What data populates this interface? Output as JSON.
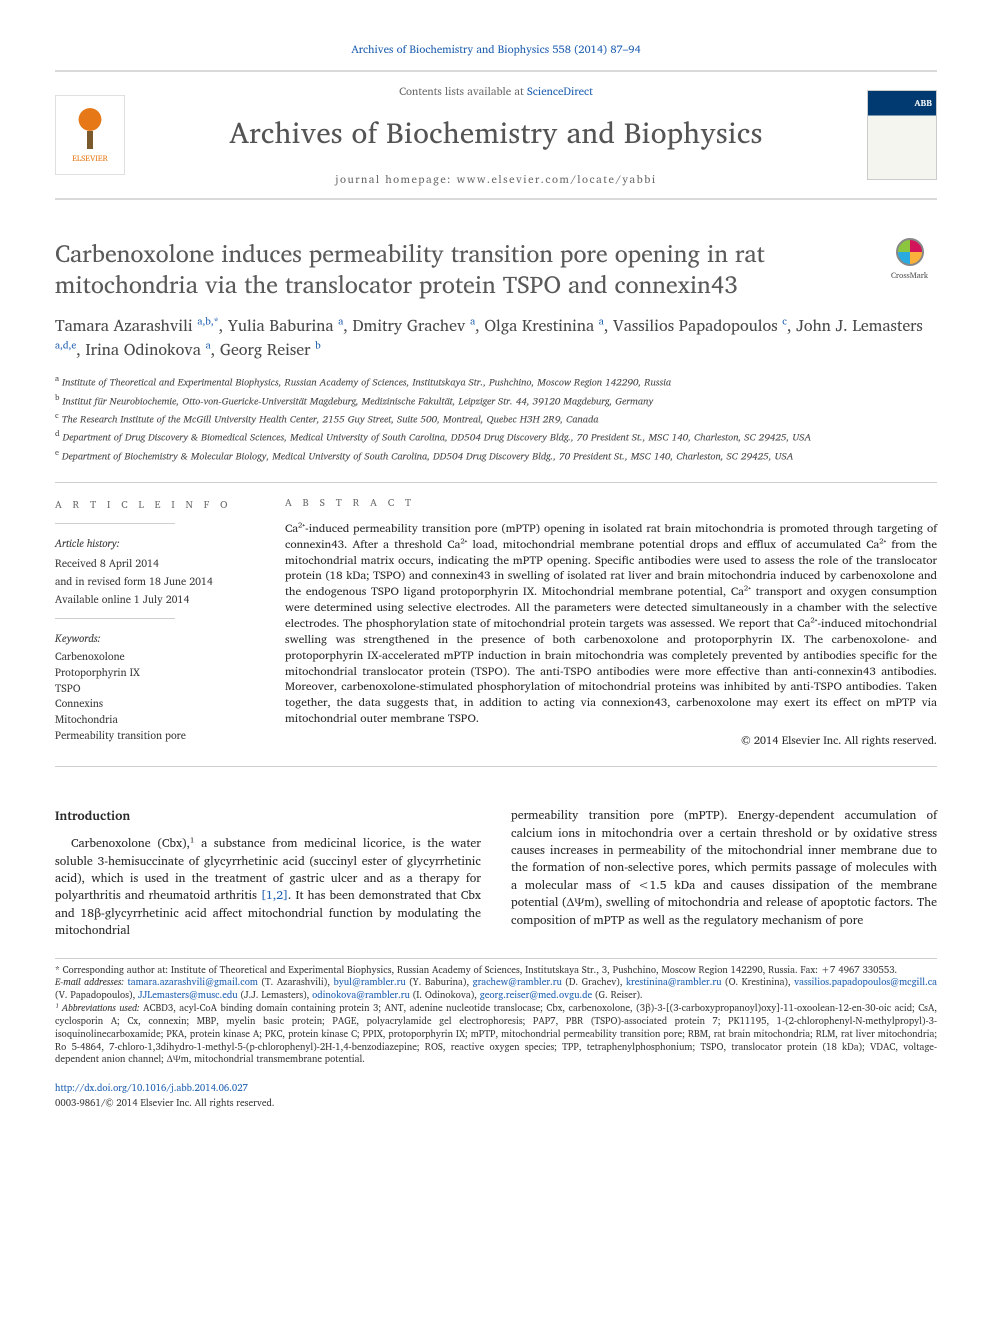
{
  "citation": "Archives of Biochemistry and Biophysics 558 (2014) 87–94",
  "header": {
    "contents_prefix": "Contents lists available at ",
    "contents_link": "ScienceDirect",
    "journal_name": "Archives of Biochemistry and Biophysics",
    "homepage_prefix": "journal homepage: ",
    "homepage_url": "www.elsevier.com/locate/yabbi",
    "publisher_label": "ELSEVIER"
  },
  "crossmark_label": "CrossMark",
  "title": "Carbenoxolone induces permeability transition pore opening in rat mitochondria via the translocator protein TSPO and connexin43",
  "authors_html": "Tamara Azarashvili <sup>a,b,*</sup>, Yulia Baburina <sup>a</sup>, Dmitry Grachev <sup>a</sup>, Olga Krestinina <sup>a</sup>, Vassilios Papadopoulos <sup>c</sup>, John J. Lemasters <sup>a,d,e</sup>, Irina Odinokova <sup>a</sup>, Georg Reiser <sup>b</sup>",
  "affiliations": [
    "a Institute of Theoretical and Experimental Biophysics, Russian Academy of Sciences, Institutskaya Str., Pushchino, Moscow Region 142290, Russia",
    "b Institut für Neurobiochemie, Otto-von-Guericke-Universität Magdeburg, Medizinische Fakultät, Leipziger Str. 44, 39120 Magdeburg, Germany",
    "c The Research Institute of the McGill University Health Center, 2155 Guy Street, Suite 500, Montreal, Quebec H3H 2R9, Canada",
    "d Department of Drug Discovery & Biomedical Sciences, Medical University of South Carolina, DD504 Drug Discovery Bldg., 70 President St., MSC 140, Charleston, SC 29425, USA",
    "e Department of Biochemistry & Molecular Biology, Medical University of South Carolina, DD504 Drug Discovery Bldg., 70 President St., MSC 140, Charleston, SC 29425, USA"
  ],
  "article_info": {
    "heading": "A R T I C L E   I N F O",
    "history_label": "Article history:",
    "history": [
      "Received 8 April 2014",
      "and in revised form 18 June 2014",
      "Available online 1 July 2014"
    ],
    "keywords_label": "Keywords:",
    "keywords": [
      "Carbenoxolone",
      "Protoporphyrin IX",
      "TSPO",
      "Connexins",
      "Mitochondria",
      "Permeability transition pore"
    ]
  },
  "abstract": {
    "heading": "A B S T R A C T",
    "text": "Ca²⁺-induced permeability transition pore (mPTP) opening in isolated rat brain mitochondria is promoted through targeting of connexin43. After a threshold Ca²⁺ load, mitochondrial membrane potential drops and efflux of accumulated Ca²⁺ from the mitochondrial matrix occurs, indicating the mPTP opening. Specific antibodies were used to assess the role of the translocator protein (18 kDa; TSPO) and connexin43 in swelling of isolated rat liver and brain mitochondria induced by carbenoxolone and the endogenous TSPO ligand protoporphyrin IX. Mitochondrial membrane potential, Ca²⁺ transport and oxygen consumption were determined using selective electrodes. All the parameters were detected simultaneously in a chamber with the selective electrodes. The phosphorylation state of mitochondrial protein targets was assessed. We report that Ca²⁺-induced mitochondrial swelling was strengthened in the presence of both carbenoxolone and protoporphyrin IX. The carbenoxolone- and protoporphyrin IX-accelerated mPTP induction in brain mitochondria was completely prevented by antibodies specific for the mitochondrial translocator protein (TSPO). The anti-TSPO antibodies were more effective than anti-connexin43 antibodies. Moreover, carbenoxolone-stimulated phosphorylation of mitochondrial proteins was inhibited by anti-TSPO antibodies. Taken together, the data suggests that, in addition to acting via connexion43, carbenoxolone may exert its effect on mPTP via mitochondrial outer membrane TSPO.",
    "copyright": "© 2014 Elsevier Inc. All rights reserved."
  },
  "body": {
    "intro_heading": "Introduction",
    "intro_para1": "Carbenoxolone (Cbx),¹ a substance from medicinal licorice, is the water soluble 3-hemisuccinate of glycyrrhetinic acid (succinyl ester of glycyrrhetinic acid), which is used in the treatment of gastric ulcer and as a therapy for polyarthritis and rheumatoid arthritis [1,2]. It has been demonstrated that Cbx and 18β-glycyrrhetinic acid affect mitochondrial function by modulating the mitochondrial",
    "intro_para2": "permeability transition pore (mPTP). Energy-dependent accumulation of calcium ions in mitochondria over a certain threshold or by oxidative stress causes increases in permeability of the mitochondrial inner membrane due to the formation of non-selective pores, which permits passage of molecules with a molecular mass of <1.5 kDa and causes dissipation of the membrane potential (ΔΨm), swelling of mitochondria and release of apoptotic factors. The composition of mPTP as well as the regulatory mechanism of pore"
  },
  "footnotes": {
    "corresponding": "* Corresponding author at: Institute of Theoretical and Experimental Biophysics, Russian Academy of Sciences, Institutskaya Str., 3, Pushchino, Moscow Region 142290, Russia. Fax: +7 4967 330553.",
    "emails_label": "E-mail addresses: ",
    "emails": "tamara.azarashvili@gmail.com (T. Azarashvili), byul@rambler.ru (Y. Baburina), grachew@rambler.ru (D. Grachev), krestinina@rambler.ru (O. Krestinina), vassilios.papadopoulos@mcgill.ca (V. Papadopoulos), JJLemasters@musc.edu (J.J. Lemasters), odinokova@rambler.ru (I. Odinokova), georg.reiser@med.ovgu.de (G. Reiser).",
    "abbrev_label": "¹ Abbreviations used: ",
    "abbrev": "ACBD3, acyl-CoA binding domain containing protein 3; ANT, adenine nucleotide translocase; Cbx, carbenoxolone, (3β)-3-[(3-carboxypropanoyl)oxy]-11-oxoolean-12-en-30-oic acid; CsA, cyclosporin A; Cx, connexin; MBP, myelin basic protein; PAGE, polyacrylamide gel electrophoresis; PAP7, PBR (TSPO)-associated protein 7; PK11195, 1-(2-chlorophenyl-N-methylpropyl)-3-isoquinolinecarboxamide; PKA, protein kinase A; PKC, protein kinase C; PPIX, protoporphyrin IX; mPTP, mitochondrial permeability transition pore; RBM, rat brain mitochondria; RLM, rat liver mitochondria; Ro 5-4864, 7-chloro-1,3dihydro-1-methyl-5-(p-chlorophenyl)-2H-1,4-benzodiazepine; ROS, reactive oxygen species; TPP, tetraphenylphosphonium; TSPO, translocator protein (18 kDa); VDAC, voltage-dependent anion channel; ΔΨm, mitochondrial transmembrane potential."
  },
  "doi": {
    "url": "http://dx.doi.org/10.1016/j.abb.2014.06.027",
    "issn_line": "0003-9861/© 2014 Elsevier Inc. All rights reserved."
  },
  "colors": {
    "link": "#2060b0",
    "text": "#2a2a2a",
    "gray": "#6a6a6a",
    "orange": "#e67817"
  }
}
